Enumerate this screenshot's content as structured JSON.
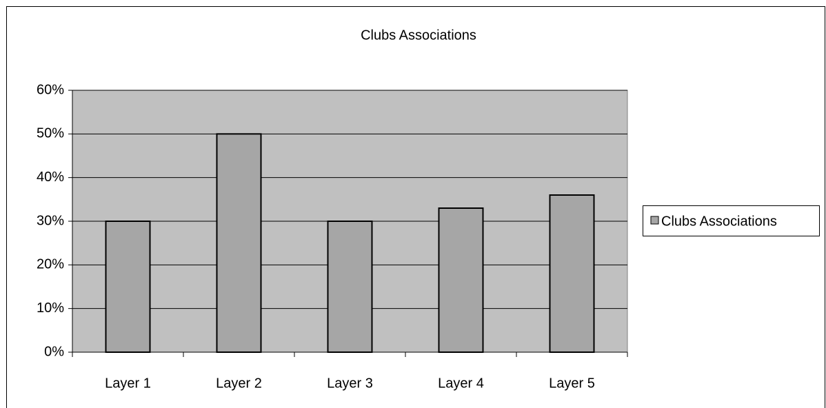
{
  "chart_data": {
    "type": "bar",
    "title": "Clubs Associations",
    "categories": [
      "Layer 1",
      "Layer 2",
      "Layer 3",
      "Layer 4",
      "Layer 5"
    ],
    "series": [
      {
        "name": "Clubs Associations",
        "color": "#a6a6a6",
        "values": [
          30,
          50,
          30,
          33,
          36
        ]
      }
    ],
    "ylim": [
      0,
      60
    ],
    "yticks": [
      {
        "value": 0,
        "label": "0%"
      },
      {
        "value": 10,
        "label": "10%"
      },
      {
        "value": 20,
        "label": "20%"
      },
      {
        "value": 30,
        "label": "30%"
      },
      {
        "value": 40,
        "label": "40%"
      },
      {
        "value": 50,
        "label": "50%"
      },
      {
        "value": 60,
        "label": "60%"
      }
    ],
    "grid": true,
    "legend": "right"
  }
}
